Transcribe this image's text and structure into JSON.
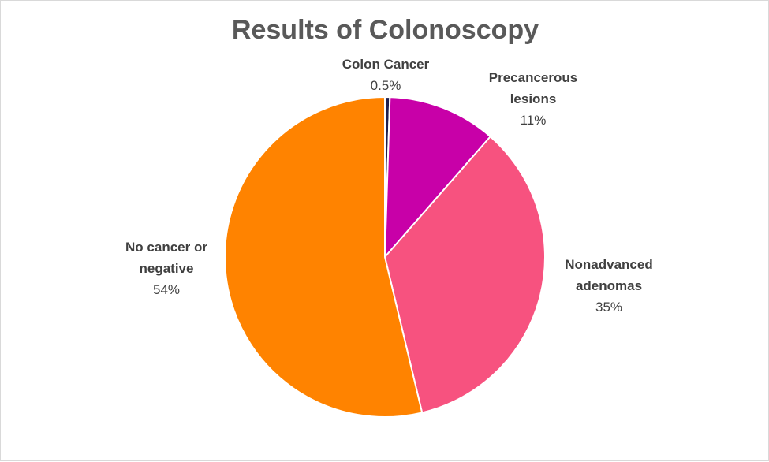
{
  "chart_data": {
    "type": "pie",
    "title": "Results of Colonoscopy",
    "legend": "none",
    "slices": [
      {
        "label_lines": [
          "Colon Cancer"
        ],
        "value": 0.5,
        "value_label": "0.5%",
        "color": "#1f1f4d"
      },
      {
        "label_lines": [
          "Precancerous",
          "lesions"
        ],
        "value": 11,
        "value_label": "11%",
        "color": "#c800a8"
      },
      {
        "label_lines": [
          "Nonadvanced",
          "adenomas"
        ],
        "value": 35,
        "value_label": "35%",
        "color": "#f7527f"
      },
      {
        "label_lines": [
          "No cancer or",
          "negative"
        ],
        "value": 54,
        "value_label": "54%",
        "color": "#ff8300"
      }
    ]
  }
}
